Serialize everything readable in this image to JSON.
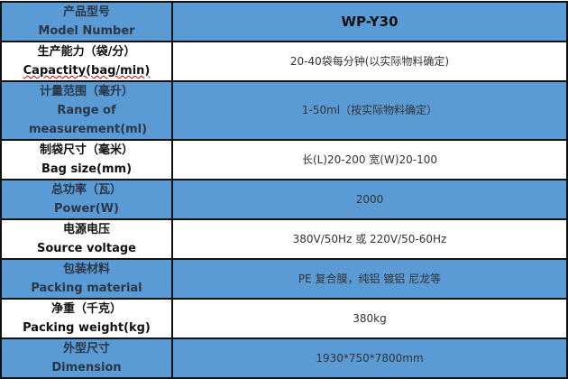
{
  "rows": [
    {
      "label_cn": "产品型号",
      "label_en": "Model Number",
      "value": "WP-Y30"
    },
    {
      "label_cn": "生产能力（袋/分）",
      "label_en": "Capactity(bag/min)",
      "value": "20-40袋每分钟(以实际物料确定)"
    },
    {
      "label_cn": "计量范围（毫升）",
      "label_en": "Range of measurement(ml)",
      "value": "1-50ml（按实际物料确定）"
    },
    {
      "label_cn": "制袋尺寸（毫米）",
      "label_en": "Bag size(mm)",
      "value": "长(L)20-200 宽(W)20-100"
    },
    {
      "label_cn": "总功率（瓦）",
      "label_en": "Power(W)",
      "value": "2000"
    },
    {
      "label_cn": "电源电压",
      "label_en": "Source voltage",
      "value": "380V/50Hz 或 220V/50-60Hz"
    },
    {
      "label_cn": "包装材料",
      "label_en": "Packing material",
      "value": "PE 复合膜，纯铝  镀铝  尼龙等"
    },
    {
      "label_cn": "净重（千克）",
      "label_en": "Packing weight(kg)",
      "value": "380kg"
    },
    {
      "label_cn": "外型尺寸",
      "label_en": "Dimension",
      "value": "1930*750*7800mm"
    }
  ],
  "colors": {
    "row_blue": "#5b9bd5",
    "row_white": "#ffffff",
    "border": "#111111"
  }
}
